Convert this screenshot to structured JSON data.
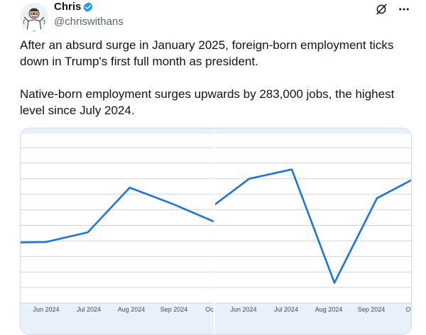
{
  "tweet": {
    "author_name": "Chris",
    "handle": "@chriswithans",
    "paragraph_1": "After an absurd surge in January 2025, foreign-born employment ticks down in Trump's first full month as president.",
    "paragraph_2": "Native-born employment surges upwards by 283,000 jobs, the highest level since July 2024."
  },
  "icons": {
    "verified": "verified-badge-icon",
    "grok": "grok-icon",
    "more": "more-options-icon"
  },
  "colors": {
    "line": "#1a73e8",
    "verified": "#1d9bf0",
    "axis_band": "#e8f0fb"
  },
  "chart_data": [
    {
      "type": "line",
      "categories": [
        "Jun 2024",
        "Jul 2024",
        "Aug 2024",
        "Sep 2024",
        "Oc"
      ],
      "series": [
        {
          "values": [
            0.78,
            0.785,
            0.91,
            1.485,
            1.28,
            1.05
          ]
        }
      ],
      "x": [
        0,
        0.6,
        1.6,
        2.6,
        3.6,
        4.6
      ],
      "ylim": [
        0,
        2
      ],
      "grid": true
    },
    {
      "type": "line",
      "categories": [
        "Jun 2024",
        "Jul 2024",
        "Aug 2024",
        "Sep 2024",
        "O"
      ],
      "series": [
        {
          "values": [
            1.27,
            1.6,
            1.72,
            0.26,
            1.35,
            1.58
          ]
        }
      ],
      "x": [
        0,
        0.8,
        1.8,
        2.8,
        3.8,
        4.6
      ],
      "ylim": [
        0,
        2
      ],
      "grid": true
    }
  ]
}
